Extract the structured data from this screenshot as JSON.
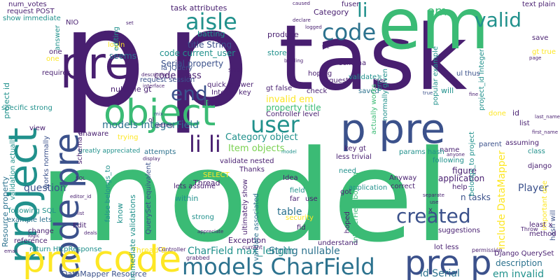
{
  "palette": {
    "background": "#ffffff",
    "dark_purple": "#481f70",
    "indigo": "#3b518b",
    "blue": "#2c728e",
    "teal": "#21918c",
    "green": "#3bbb75",
    "lime": "#7ad151",
    "yellow": "#fde725"
  },
  "words": [
    "p",
    "p",
    "task",
    "em",
    "model",
    "object",
    "pre",
    "p pre",
    "project",
    "code pre",
    "pre code",
    "models CharField",
    "pre p",
    "user",
    "aisle",
    "li li",
    "code",
    "li",
    "valid",
    "created",
    "end",
    "em",
    "include DataMapper",
    "CharField max_length",
    "String nullable",
    "models IntegerField",
    "Category object",
    "Item objects",
    "invalid em",
    "property title",
    "code current_user",
    "Serial property",
    "code class",
    "title String",
    "seems",
    "Player",
    "em invalid",
    "id Serial",
    "description",
    "n tasks",
    "figure",
    "application",
    "table",
    "question",
    "Resource property",
    "project id",
    "task attributes",
    "Category",
    "produce",
    "store",
    "batting",
    "nullable gt",
    "Item",
    "Exception",
    "DataMapper Resource",
    "Thread B",
    "Thread",
    "immediate validations",
    "within",
    "strong",
    "know",
    "ultimately show",
    "validate associated",
    "validate nested",
    "hoping",
    "request",
    "saved",
    "will",
    "done",
    "save",
    "gt true",
    "hash will",
    "parent",
    "assuming",
    "class",
    "list",
    "django",
    "important one",
    "Django QuerySet",
    "lot less",
    "suggestions",
    "least x",
    "help",
    "application",
    "following",
    "Anyway",
    "correct",
    "name",
    "params hash",
    "key gt",
    "need",
    "got",
    "hoped",
    "IntegerField bowling",
    "Idea",
    "field",
    "far",
    "use",
    "security",
    "fid",
    "understand",
    "less trivial",
    "actually works",
    "error",
    "normally given",
    "validate",
    "check",
    "Controller level",
    "gt false",
    "Integer key",
    "quick answer",
    "request session",
    "la jQuery",
    "ul",
    "thus",
    "project_id Integer",
    "belongs_to project",
    "unaware",
    "view",
    "works normally",
    "specific strong",
    "validation actually",
    "requires",
    "show immediate",
    "request POST",
    "num_votes",
    "NIO",
    "login",
    "editing",
    "answer",
    "following SQL",
    "example lets",
    "change",
    "reference",
    "return HttpResponse",
    "false belongs_to",
    "QuerySet equivalent",
    "SELECT",
    "attempts",
    "trying",
    "greatly appreciated",
    "Edit",
    "lets assume",
    "Thanks",
    "Controller",
    "current",
    "permission",
    "grabbed",
    "method",
    "Throw",
    "anyone",
    "first_name",
    "last_name",
    "popular example",
    "text plain",
    "fuser",
    "caused",
    "page",
    "schema",
    "schema definitions",
    "one",
    "mix",
    "ol",
    "display",
    "SQL",
    "editor_id",
    "list",
    "email",
    "logic",
    "separate",
    "see",
    "description",
    "interface",
    "set",
    "layer",
    "fine",
    "true",
    "x",
    "deals",
    "logged",
    "declare",
    "bowling",
    "rule",
    "appreciate",
    "getting",
    "file",
    "model",
    "use",
    "id",
    "one"
  ]
}
